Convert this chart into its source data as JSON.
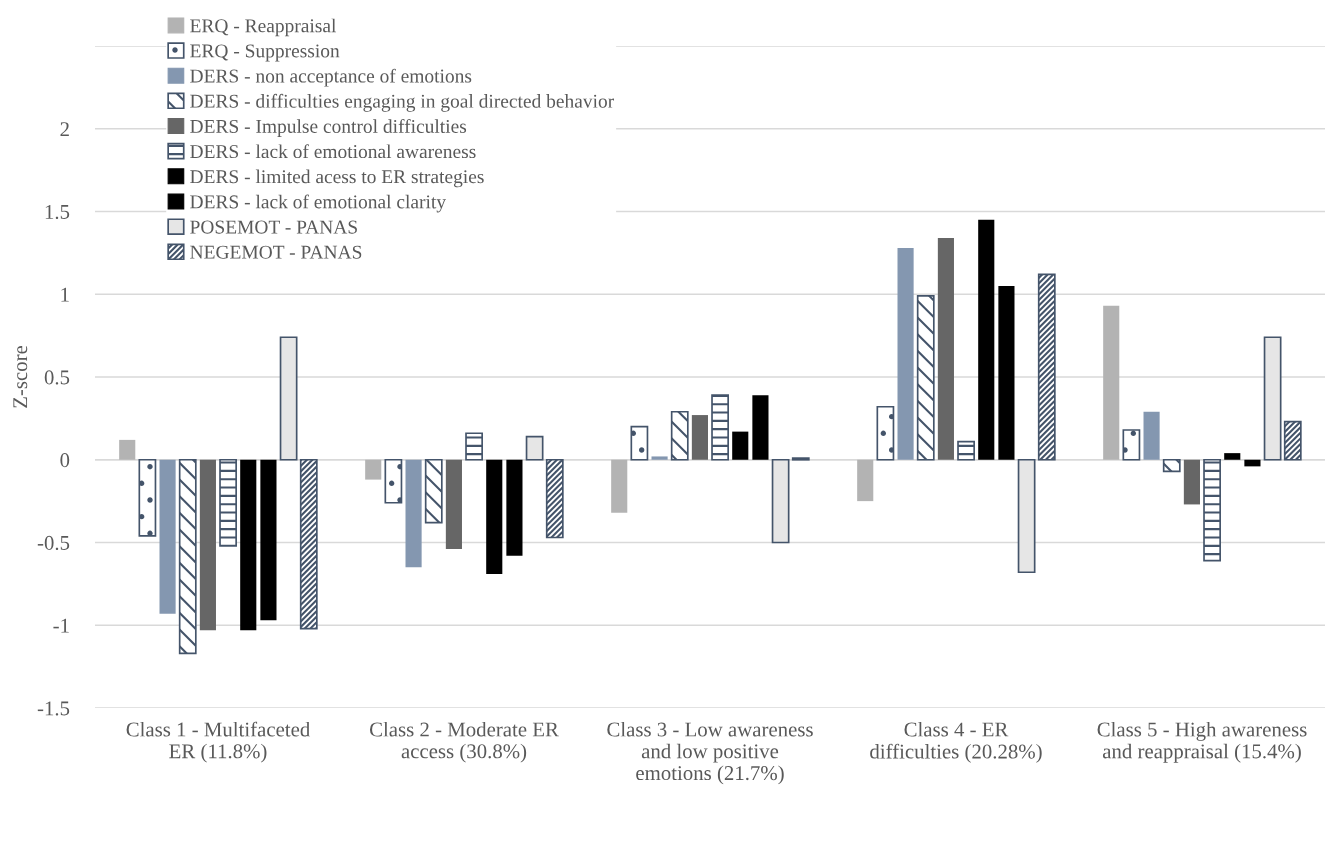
{
  "chart_data": {
    "type": "bar",
    "ylabel": "Z-score",
    "categories": [
      "Class 1 - Multifaceted ER (11.8%)",
      "Class 2 - Moderate ER access (30.8%)",
      "Class 3 - Low awareness and low positive emotions (21.7%)",
      "Class 4 - ER difficulties (20.28%)",
      "Class 5 - High awareness and reappraisal (15.4%)"
    ],
    "series": [
      {
        "name": "ERQ - Reappraisal",
        "color": "#b3b3b3",
        "values": [
          0.12,
          -0.12,
          -0.32,
          -0.25,
          0.93
        ]
      },
      {
        "name": "ERQ - Suppression",
        "color": "#44546a",
        "values": [
          -0.46,
          -0.26,
          0.2,
          0.32,
          0.18
        ]
      },
      {
        "name": "DERS - non acceptance of emotions",
        "color": "#8497b0",
        "values": [
          -0.93,
          -0.65,
          0.02,
          1.28,
          0.29
        ]
      },
      {
        "name": "DERS - difficulties engaging in goal directed behavior",
        "color": "#44546a",
        "values": [
          -1.17,
          -0.38,
          0.29,
          0.99,
          -0.07
        ]
      },
      {
        "name": "DERS - Impulse control difficulties",
        "color": "#666666",
        "values": [
          -1.03,
          -0.54,
          0.27,
          1.34,
          -0.27
        ]
      },
      {
        "name": "DERS - lack of emotional awareness",
        "color": "#44546a",
        "values": [
          -0.52,
          0.16,
          0.39,
          0.11,
          -0.61
        ]
      },
      {
        "name": "DERS - limited acess to ER strategies",
        "color": "#000000",
        "values": [
          -1.03,
          -0.69,
          0.17,
          1.45,
          0.04
        ]
      },
      {
        "name": "DERS - lack of emotional clarity",
        "color": "#000000",
        "values": [
          -0.97,
          -0.58,
          0.39,
          1.05,
          -0.04
        ]
      },
      {
        "name": "POSEMOT - PANAS",
        "color": "#e6e6e6",
        "values": [
          0.74,
          0.14,
          -0.5,
          -0.68,
          0.74
        ]
      },
      {
        "name": "NEGEMOT - PANAS",
        "color": "#44546a",
        "values": [
          -1.02,
          -0.47,
          0.01,
          1.12,
          0.23
        ]
      }
    ],
    "ylim": [
      -1.5,
      2.5
    ],
    "yticks": [
      -1.5,
      -1,
      -0.5,
      0,
      0.5,
      1,
      1.5,
      2,
      {
        "value": 2.5,
        "label": null
      }
    ],
    "grid": "y",
    "legend": "top left"
  }
}
